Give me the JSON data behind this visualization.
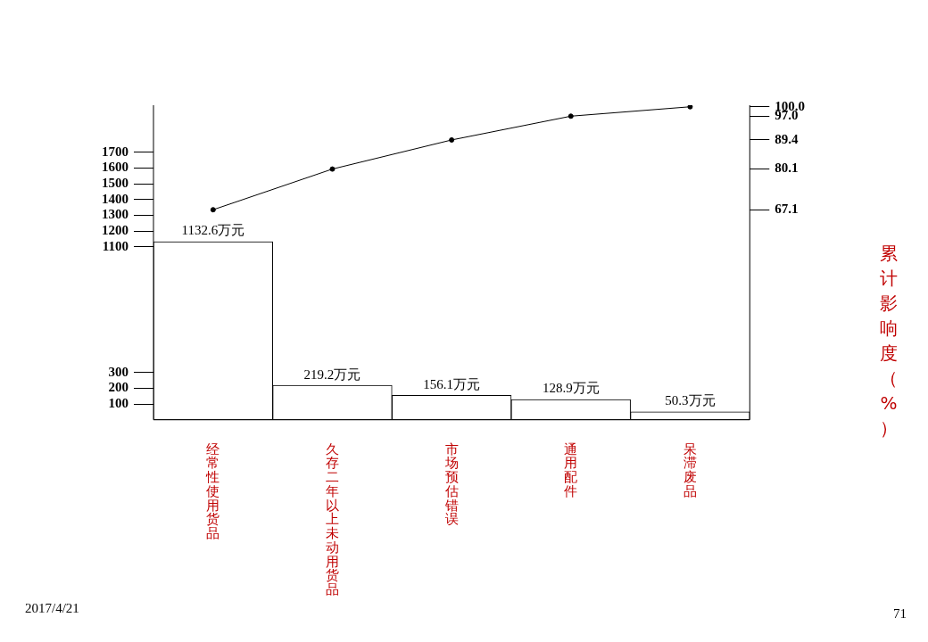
{
  "chart_data": {
    "type": "bar",
    "categories": [
      "经常性使用货品",
      "久存二年以上未动用货品",
      "市场预估错误",
      "通用配件",
      "呆滞废品"
    ],
    "series": [
      {
        "color": "#ffffff",
        "values": [
          1132.6,
          219.2,
          156.1,
          128.9,
          50.3
        ],
        "value_labels": [
          "1132.6万元",
          "219.2万元",
          "156.1万元",
          "128.9万元",
          "50.3万元"
        ]
      },
      {
        "type": "line",
        "axis": "y2",
        "color": "#000000",
        "values": [
          67.1,
          80.1,
          89.4,
          97.0,
          100.0
        ],
        "marker": "circle"
      }
    ],
    "ylim": [
      0,
      2000
    ],
    "yticks": [
      100,
      200,
      300,
      1100,
      1200,
      1300,
      1400,
      1500,
      1600,
      1700
    ],
    "y2lim": [
      0,
      100.5
    ],
    "y2ticks": [
      {
        "value": 67.1,
        "label": "67.1"
      },
      {
        "value": 80.1,
        "label": "80.1"
      },
      {
        "value": 89.4,
        "label": "89.4"
      },
      {
        "value": 97.0,
        "label": "97.0"
      },
      {
        "value": 100.0,
        "label": "100.0"
      }
    ],
    "y2label": "累计影响度（%）",
    "annotations": [
      "2017/4/21",
      "71"
    ],
    "legend": false,
    "grid": false
  }
}
